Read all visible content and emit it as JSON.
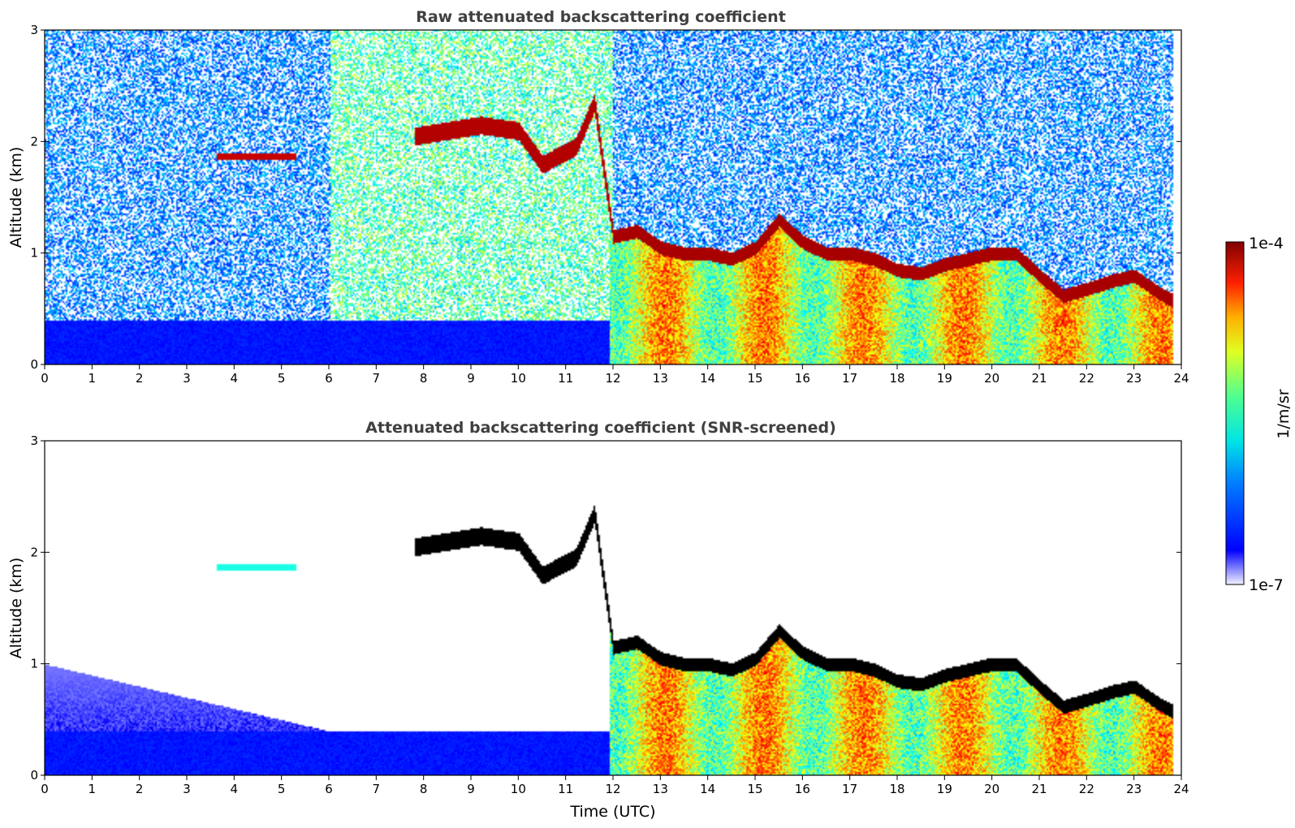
{
  "chart_data": [
    {
      "type": "heatmap",
      "title": "Raw attenuated backscattering coefficient",
      "xlabel": "",
      "ylabel": "Altitude (km)",
      "xlim": [
        0,
        24
      ],
      "ylim": [
        0,
        3
      ],
      "xticks": [
        "0",
        "1",
        "2",
        "3",
        "4",
        "5",
        "6",
        "7",
        "8",
        "9",
        "10",
        "11",
        "12",
        "13",
        "14",
        "15",
        "16",
        "17",
        "18",
        "19",
        "20",
        "21",
        "22",
        "23",
        "24"
      ],
      "yticks": [
        "0",
        "1",
        "2",
        "3"
      ],
      "screened": false,
      "cloud_base_km": [
        [
          7.8,
          2.05
        ],
        [
          8.5,
          2.1
        ],
        [
          9.2,
          2.15
        ],
        [
          10.0,
          2.1
        ],
        [
          10.5,
          1.8
        ],
        [
          11.2,
          1.95
        ],
        [
          11.6,
          2.35
        ],
        [
          12.0,
          1.15
        ],
        [
          12.5,
          1.2
        ],
        [
          13.0,
          1.05
        ],
        [
          13.5,
          1.0
        ],
        [
          14.0,
          1.0
        ],
        [
          14.5,
          0.95
        ],
        [
          15.0,
          1.05
        ],
        [
          15.5,
          1.3
        ],
        [
          16.0,
          1.1
        ],
        [
          16.5,
          1.0
        ],
        [
          17.0,
          1.0
        ],
        [
          17.5,
          0.95
        ],
        [
          18.0,
          0.85
        ],
        [
          18.5,
          0.82
        ],
        [
          19.0,
          0.9
        ],
        [
          19.5,
          0.95
        ],
        [
          20.0,
          1.0
        ],
        [
          20.5,
          1.0
        ],
        [
          21.0,
          0.8
        ],
        [
          21.5,
          0.62
        ],
        [
          22.0,
          0.68
        ],
        [
          22.5,
          0.75
        ],
        [
          23.0,
          0.8
        ],
        [
          23.5,
          0.65
        ],
        [
          23.8,
          0.58
        ]
      ]
    },
    {
      "type": "heatmap",
      "title": "Attenuated backscattering coefficient (SNR-screened)",
      "xlabel": "Time (UTC)",
      "ylabel": "Altitude (km)",
      "xlim": [
        0,
        24
      ],
      "ylim": [
        0,
        3
      ],
      "xticks": [
        "0",
        "1",
        "2",
        "3",
        "4",
        "5",
        "6",
        "7",
        "8",
        "9",
        "10",
        "11",
        "12",
        "13",
        "14",
        "15",
        "16",
        "17",
        "18",
        "19",
        "20",
        "21",
        "22",
        "23",
        "24"
      ],
      "yticks": [
        "0",
        "1",
        "2",
        "3"
      ],
      "screened": true
    }
  ],
  "colorbar": {
    "label": "1/m/sr",
    "max_label": "1e-4",
    "min_label": "1e-7",
    "scale": "log",
    "range": [
      1e-07,
      0.0001
    ],
    "colormap": "jet"
  }
}
